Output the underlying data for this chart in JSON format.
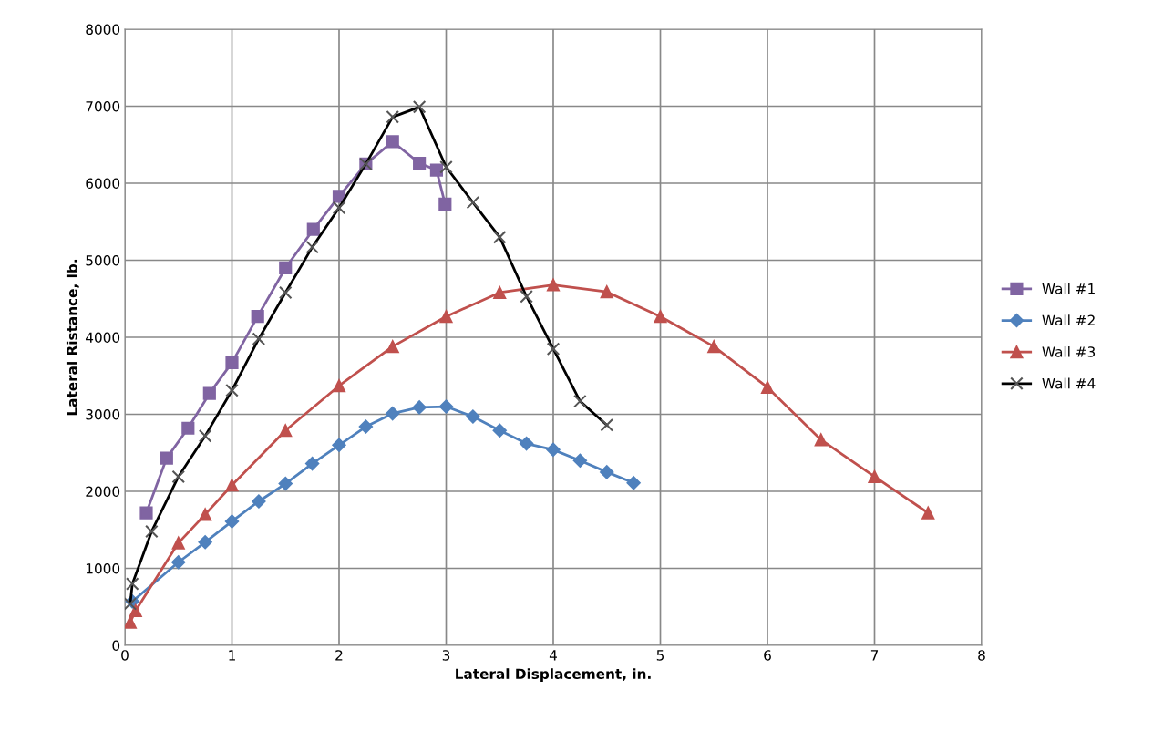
{
  "chart_data": {
    "type": "line",
    "xlabel": "Lateral Displacement, in.",
    "ylabel": "Lateral Ristance, lb.",
    "xlim": [
      0,
      8
    ],
    "xticks": [
      0,
      1,
      2,
      3,
      4,
      5,
      6,
      7,
      8
    ],
    "ylim": [
      0,
      8000
    ],
    "yticks": [
      0,
      1000,
      2000,
      3000,
      4000,
      5000,
      6000,
      7000,
      8000
    ],
    "grid": true,
    "legend": "right",
    "series": [
      {
        "name": "Wall #1",
        "color": "#8064a2",
        "marker": "square",
        "x": [
          0.2,
          0.39,
          0.59,
          0.79,
          1.0,
          1.24,
          1.5,
          1.76,
          2.0,
          2.25,
          2.5,
          2.75,
          2.91,
          2.99
        ],
        "values": [
          1720,
          2430,
          2820,
          3270,
          3670,
          4270,
          4900,
          5400,
          5830,
          6250,
          6540,
          6260,
          6170,
          5730
        ]
      },
      {
        "name": "Wall #2",
        "color": "#4f81bd",
        "marker": "diamond",
        "x": [
          0.07,
          0.5,
          0.75,
          1.0,
          1.25,
          1.5,
          1.75,
          2.0,
          2.25,
          2.5,
          2.75,
          3.0,
          3.25,
          3.5,
          3.75,
          4.0,
          4.25,
          4.5,
          4.75
        ],
        "values": [
          570,
          1080,
          1340,
          1610,
          1870,
          2100,
          2360,
          2600,
          2840,
          3010,
          3090,
          3100,
          2970,
          2790,
          2620,
          2540,
          2400,
          2250,
          2110
        ]
      },
      {
        "name": "Wall #3",
        "color": "#c0504d",
        "marker": "triangle",
        "x": [
          0.05,
          0.1,
          0.5,
          0.75,
          1.0,
          1.5,
          2.0,
          2.5,
          3.0,
          3.5,
          4.0,
          4.5,
          5.0,
          5.5,
          6.0,
          6.5,
          7.0,
          7.5
        ],
        "values": [
          300,
          450,
          1330,
          1700,
          2080,
          2790,
          3370,
          3880,
          4270,
          4580,
          4680,
          4590,
          4270,
          3880,
          3350,
          2670,
          2190,
          1720
        ]
      },
      {
        "name": "Wall #4",
        "color": "#000000",
        "marker": "cross",
        "x": [
          0.05,
          0.07,
          0.25,
          0.5,
          0.75,
          1.0,
          1.25,
          1.5,
          1.75,
          2.0,
          2.25,
          2.5,
          2.75,
          3.0,
          3.25,
          3.5,
          3.75,
          4.0,
          4.25,
          4.5
        ],
        "values": [
          540,
          800,
          1480,
          2190,
          2720,
          3310,
          3980,
          4580,
          5170,
          5680,
          6250,
          6860,
          6990,
          6210,
          5750,
          5300,
          4530,
          3850,
          3170,
          2860
        ]
      }
    ]
  }
}
